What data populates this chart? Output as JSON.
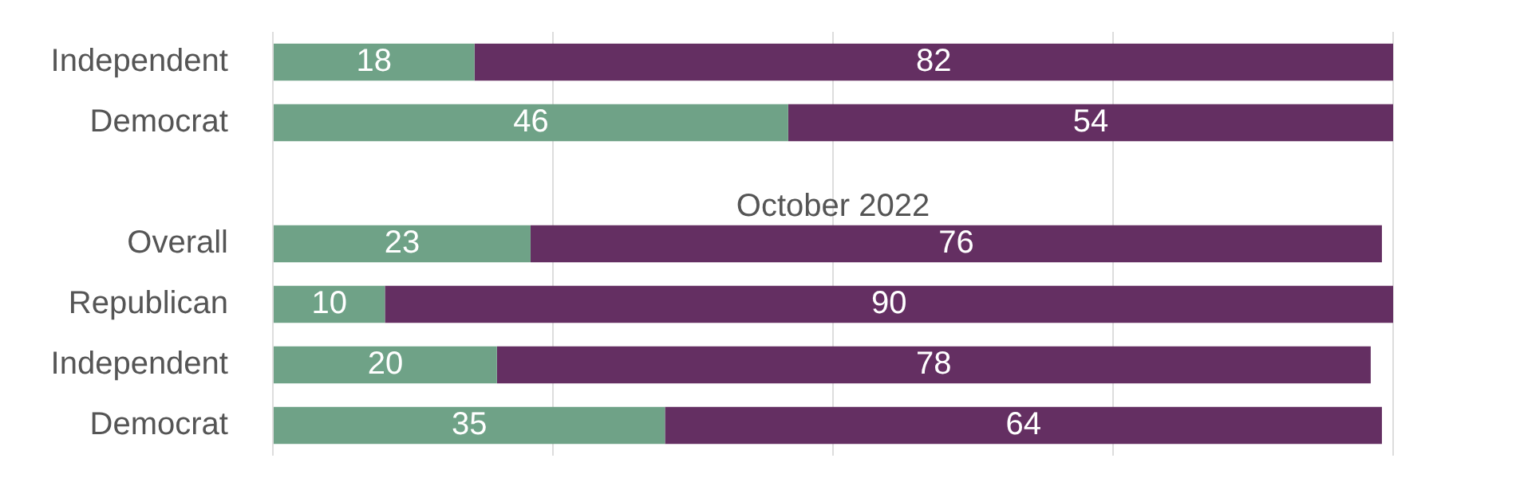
{
  "chart_data": {
    "type": "bar",
    "orientation": "horizontal",
    "stacked": true,
    "relative": false,
    "categories": [
      "Independent",
      "Democrat",
      null,
      "Overall",
      "Republican",
      "Independent",
      "Democrat"
    ],
    "series": [
      {
        "color": "#6fa287",
        "values": [
          18,
          46,
          null,
          23,
          10,
          20,
          35
        ]
      },
      {
        "color": "#642f62",
        "values": [
          82,
          54,
          null,
          76,
          90,
          78,
          64
        ]
      }
    ],
    "xlim": [
      0,
      100
    ],
    "xticks": [
      {
        "value": 0,
        "label": null
      },
      {
        "value": 25,
        "label": null
      },
      {
        "value": 50,
        "label": null
      },
      {
        "value": 75,
        "label": null
      },
      {
        "value": 100,
        "label": null
      }
    ],
    "tick_labels": "y",
    "grid": "x",
    "legend": false,
    "data_labels": true,
    "annotations": [
      "October 2022"
    ]
  }
}
